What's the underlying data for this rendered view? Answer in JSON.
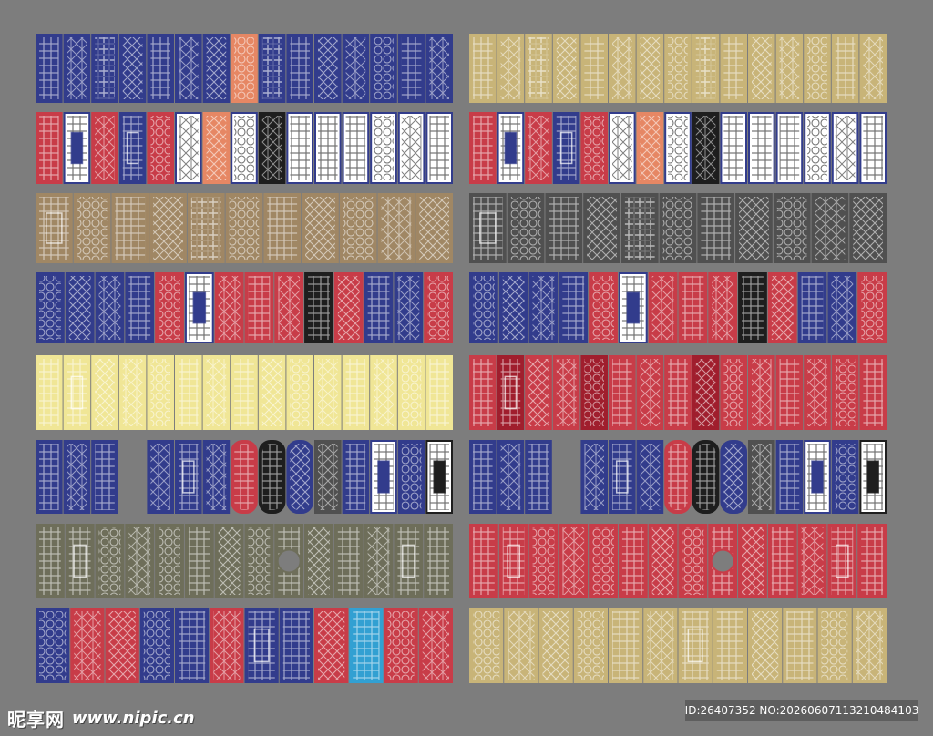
{
  "watermark": {
    "logo": "昵享网",
    "url": "www.nipic.cn",
    "id_text": "ID:26407352 NO:20260607113210484103"
  },
  "colors": {
    "background": "#7d7d7d",
    "navy": "#323c8c",
    "gold": "#c8b478",
    "red": "#c83c48",
    "tan": "#a08764",
    "darkgray": "#505050",
    "yellow": "#f0e696",
    "olive": "#6e6e5a",
    "maroon": "#a01e2d",
    "orange": "#e68764",
    "cyan": "#32a0d2",
    "white": "#ffffff",
    "black": "#1e1e1e"
  },
  "panel_rows": [
    {
      "name": "row-1",
      "left": [
        {
          "c": "navy",
          "p": "grid"
        },
        {
          "c": "navy",
          "p": "lattice"
        },
        {
          "c": "navy",
          "p": "cross"
        },
        {
          "c": "navy",
          "p": "diamond"
        },
        {
          "c": "navy",
          "p": "grid"
        },
        {
          "c": "navy",
          "p": "lattice"
        },
        {
          "c": "navy",
          "p": "diamond"
        },
        {
          "c": "orange",
          "p": "circles"
        },
        {
          "c": "navy",
          "p": "cross"
        },
        {
          "c": "navy",
          "p": "grid"
        },
        {
          "c": "navy",
          "p": "diamond"
        },
        {
          "c": "navy",
          "p": "lattice"
        },
        {
          "c": "navy",
          "p": "circles"
        },
        {
          "c": "navy",
          "p": "grid"
        },
        {
          "c": "navy",
          "p": "lattice"
        }
      ],
      "right": [
        {
          "c": "gold",
          "p": "grid"
        },
        {
          "c": "gold",
          "p": "lattice"
        },
        {
          "c": "gold",
          "p": "cross"
        },
        {
          "c": "gold",
          "p": "diamond"
        },
        {
          "c": "gold",
          "p": "grid"
        },
        {
          "c": "gold",
          "p": "lattice"
        },
        {
          "c": "gold",
          "p": "diamond"
        },
        {
          "c": "gold",
          "p": "circles"
        },
        {
          "c": "gold",
          "p": "cross"
        },
        {
          "c": "gold",
          "p": "grid"
        },
        {
          "c": "gold",
          "p": "diamond"
        },
        {
          "c": "gold",
          "p": "lattice"
        },
        {
          "c": "gold",
          "p": "circles"
        },
        {
          "c": "gold",
          "p": "grid"
        },
        {
          "c": "gold",
          "p": "lattice"
        }
      ]
    },
    {
      "name": "row-2",
      "left": [
        {
          "c": "red",
          "p": "grid"
        },
        {
          "c": "navy",
          "p": "frame",
          "bg": "white"
        },
        {
          "c": "red",
          "p": "lattice"
        },
        {
          "c": "navy",
          "p": "frame"
        },
        {
          "c": "red",
          "p": "circles"
        },
        {
          "c": "navy",
          "p": "lattice",
          "bg": "white"
        },
        {
          "c": "orange",
          "p": "diamond"
        },
        {
          "c": "navy",
          "p": "circles",
          "bg": "white"
        },
        {
          "c": "black",
          "p": "lattice"
        },
        {
          "c": "navy",
          "p": "grid",
          "bg": "white"
        },
        {
          "c": "navy",
          "p": "grid",
          "bg": "white"
        },
        {
          "c": "navy",
          "p": "grid",
          "bg": "white"
        },
        {
          "c": "navy",
          "p": "circles",
          "bg": "white"
        },
        {
          "c": "navy",
          "p": "lattice",
          "bg": "white"
        },
        {
          "c": "navy",
          "p": "grid",
          "bg": "white"
        }
      ],
      "right": [
        {
          "c": "red",
          "p": "grid"
        },
        {
          "c": "navy",
          "p": "frame",
          "bg": "white"
        },
        {
          "c": "red",
          "p": "lattice"
        },
        {
          "c": "navy",
          "p": "frame"
        },
        {
          "c": "red",
          "p": "circles"
        },
        {
          "c": "navy",
          "p": "lattice",
          "bg": "white"
        },
        {
          "c": "orange",
          "p": "diamond"
        },
        {
          "c": "navy",
          "p": "circles",
          "bg": "white"
        },
        {
          "c": "black",
          "p": "lattice"
        },
        {
          "c": "navy",
          "p": "grid",
          "bg": "white"
        },
        {
          "c": "navy",
          "p": "grid",
          "bg": "white"
        },
        {
          "c": "navy",
          "p": "grid",
          "bg": "white"
        },
        {
          "c": "navy",
          "p": "circles",
          "bg": "white"
        },
        {
          "c": "navy",
          "p": "lattice",
          "bg": "white"
        },
        {
          "c": "navy",
          "p": "grid",
          "bg": "white"
        }
      ]
    },
    {
      "name": "row-3",
      "left": [
        {
          "c": "tan",
          "p": "frame"
        },
        {
          "c": "tan",
          "p": "circles"
        },
        {
          "c": "tan",
          "p": "grid"
        },
        {
          "c": "tan",
          "p": "diamond"
        },
        {
          "c": "tan",
          "p": "cross"
        },
        {
          "c": "tan",
          "p": "circles"
        },
        {
          "c": "tan",
          "p": "grid"
        },
        {
          "c": "tan",
          "p": "diamond"
        },
        {
          "c": "tan",
          "p": "circles"
        },
        {
          "c": "tan",
          "p": "lattice"
        },
        {
          "c": "tan",
          "p": "diamond"
        }
      ],
      "right": [
        {
          "c": "darkgray",
          "p": "frame"
        },
        {
          "c": "darkgray",
          "p": "circles"
        },
        {
          "c": "darkgray",
          "p": "grid"
        },
        {
          "c": "darkgray",
          "p": "diamond"
        },
        {
          "c": "darkgray",
          "p": "cross"
        },
        {
          "c": "darkgray",
          "p": "circles"
        },
        {
          "c": "darkgray",
          "p": "grid"
        },
        {
          "c": "darkgray",
          "p": "diamond"
        },
        {
          "c": "darkgray",
          "p": "circles"
        },
        {
          "c": "darkgray",
          "p": "lattice"
        },
        {
          "c": "darkgray",
          "p": "diamond"
        }
      ]
    },
    {
      "name": "row-4",
      "left": [
        {
          "c": "navy",
          "p": "circles"
        },
        {
          "c": "navy",
          "p": "diamond"
        },
        {
          "c": "navy",
          "p": "lattice"
        },
        {
          "c": "navy",
          "p": "grid"
        },
        {
          "c": "red",
          "p": "circles"
        },
        {
          "c": "navy",
          "p": "frame",
          "bg": "white"
        },
        {
          "c": "red",
          "p": "lattice"
        },
        {
          "c": "red",
          "p": "grid"
        },
        {
          "c": "red",
          "p": "lattice"
        },
        {
          "c": "black",
          "p": "grid"
        },
        {
          "c": "red",
          "p": "diamond"
        },
        {
          "c": "navy",
          "p": "grid"
        },
        {
          "c": "navy",
          "p": "lattice"
        },
        {
          "c": "red",
          "p": "circles"
        }
      ],
      "right": [
        {
          "c": "navy",
          "p": "circles"
        },
        {
          "c": "navy",
          "p": "diamond"
        },
        {
          "c": "navy",
          "p": "lattice"
        },
        {
          "c": "navy",
          "p": "grid"
        },
        {
          "c": "red",
          "p": "circles"
        },
        {
          "c": "navy",
          "p": "frame",
          "bg": "white"
        },
        {
          "c": "red",
          "p": "lattice"
        },
        {
          "c": "red",
          "p": "grid"
        },
        {
          "c": "red",
          "p": "lattice"
        },
        {
          "c": "black",
          "p": "grid"
        },
        {
          "c": "red",
          "p": "diamond"
        },
        {
          "c": "navy",
          "p": "grid"
        },
        {
          "c": "navy",
          "p": "lattice"
        },
        {
          "c": "red",
          "p": "circles"
        }
      ]
    },
    {
      "name": "row-5",
      "left": [
        {
          "c": "yellow",
          "p": "grid"
        },
        {
          "c": "yellow",
          "p": "frame"
        },
        {
          "c": "yellow",
          "p": "diamond"
        },
        {
          "c": "yellow",
          "p": "lattice"
        },
        {
          "c": "yellow",
          "p": "circles"
        },
        {
          "c": "yellow",
          "p": "grid"
        },
        {
          "c": "yellow",
          "p": "lattice"
        },
        {
          "c": "yellow",
          "p": "grid"
        },
        {
          "c": "yellow",
          "p": "diamond"
        },
        {
          "c": "yellow",
          "p": "circles"
        },
        {
          "c": "yellow",
          "p": "lattice"
        },
        {
          "c": "yellow",
          "p": "grid"
        },
        {
          "c": "yellow",
          "p": "lattice"
        },
        {
          "c": "yellow",
          "p": "circles"
        },
        {
          "c": "yellow",
          "p": "grid"
        }
      ],
      "right": [
        {
          "c": "red",
          "p": "grid"
        },
        {
          "c": "maroon",
          "p": "frame"
        },
        {
          "c": "red",
          "p": "diamond"
        },
        {
          "c": "red",
          "p": "lattice"
        },
        {
          "c": "maroon",
          "p": "circles"
        },
        {
          "c": "red",
          "p": "grid"
        },
        {
          "c": "red",
          "p": "lattice"
        },
        {
          "c": "red",
          "p": "grid"
        },
        {
          "c": "maroon",
          "p": "diamond"
        },
        {
          "c": "red",
          "p": "circles"
        },
        {
          "c": "red",
          "p": "lattice"
        },
        {
          "c": "red",
          "p": "grid"
        },
        {
          "c": "red",
          "p": "lattice"
        },
        {
          "c": "red",
          "p": "circles"
        },
        {
          "c": "red",
          "p": "grid"
        }
      ]
    },
    {
      "name": "row-6",
      "left": [
        {
          "c": "navy",
          "p": "grid"
        },
        {
          "c": "navy",
          "p": "lattice"
        },
        {
          "c": "navy",
          "p": "grid"
        },
        {
          "gap": true
        },
        {
          "c": "navy",
          "p": "lattice"
        },
        {
          "c": "navy",
          "p": "frame"
        },
        {
          "c": "navy",
          "p": "lattice"
        },
        {
          "c": "red",
          "p": "grid",
          "arch": true
        },
        {
          "c": "black",
          "p": "grid",
          "arch": true
        },
        {
          "c": "navy",
          "p": "diamond",
          "arch": true
        },
        {
          "c": "darkgray",
          "p": "lattice"
        },
        {
          "c": "navy",
          "p": "grid"
        },
        {
          "c": "navy",
          "p": "frame",
          "bg": "white"
        },
        {
          "c": "navy",
          "p": "circles"
        },
        {
          "c": "black",
          "p": "frame",
          "bg": "white"
        }
      ],
      "right": [
        {
          "c": "navy",
          "p": "grid"
        },
        {
          "c": "navy",
          "p": "lattice"
        },
        {
          "c": "navy",
          "p": "grid"
        },
        {
          "gap": true
        },
        {
          "c": "navy",
          "p": "lattice"
        },
        {
          "c": "navy",
          "p": "frame"
        },
        {
          "c": "navy",
          "p": "lattice"
        },
        {
          "c": "red",
          "p": "grid",
          "arch": true
        },
        {
          "c": "black",
          "p": "grid",
          "arch": true
        },
        {
          "c": "navy",
          "p": "diamond",
          "arch": true
        },
        {
          "c": "darkgray",
          "p": "lattice"
        },
        {
          "c": "navy",
          "p": "grid"
        },
        {
          "c": "navy",
          "p": "frame",
          "bg": "white"
        },
        {
          "c": "navy",
          "p": "circles"
        },
        {
          "c": "black",
          "p": "frame",
          "bg": "white"
        }
      ]
    },
    {
      "name": "row-7",
      "left": [
        {
          "c": "olive",
          "p": "grid"
        },
        {
          "c": "olive",
          "p": "frame"
        },
        {
          "c": "olive",
          "p": "circles"
        },
        {
          "c": "olive",
          "p": "lattice"
        },
        {
          "c": "olive",
          "p": "circles"
        },
        {
          "c": "olive",
          "p": "grid"
        },
        {
          "c": "olive",
          "p": "diamond"
        },
        {
          "c": "olive",
          "p": "circles"
        },
        {
          "c": "olive",
          "p": "medallion"
        },
        {
          "c": "olive",
          "p": "diamond"
        },
        {
          "c": "olive",
          "p": "grid"
        },
        {
          "c": "olive",
          "p": "lattice"
        },
        {
          "c": "olive",
          "p": "frame"
        },
        {
          "c": "olive",
          "p": "grid"
        }
      ],
      "right": [
        {
          "c": "red",
          "p": "grid"
        },
        {
          "c": "red",
          "p": "frame"
        },
        {
          "c": "red",
          "p": "circles"
        },
        {
          "c": "red",
          "p": "lattice"
        },
        {
          "c": "red",
          "p": "circles"
        },
        {
          "c": "red",
          "p": "grid"
        },
        {
          "c": "red",
          "p": "diamond"
        },
        {
          "c": "red",
          "p": "circles"
        },
        {
          "c": "red",
          "p": "medallion"
        },
        {
          "c": "red",
          "p": "diamond"
        },
        {
          "c": "red",
          "p": "grid"
        },
        {
          "c": "red",
          "p": "lattice"
        },
        {
          "c": "red",
          "p": "frame"
        },
        {
          "c": "red",
          "p": "grid"
        }
      ]
    },
    {
      "name": "row-8",
      "left": [
        {
          "c": "navy",
          "p": "circles"
        },
        {
          "c": "red",
          "p": "lattice"
        },
        {
          "c": "red",
          "p": "diamond"
        },
        {
          "c": "navy",
          "p": "circles"
        },
        {
          "c": "navy",
          "p": "grid"
        },
        {
          "c": "red",
          "p": "lattice"
        },
        {
          "c": "navy",
          "p": "frame"
        },
        {
          "c": "navy",
          "p": "grid"
        },
        {
          "c": "red",
          "p": "diamond"
        },
        {
          "c": "cyan",
          "p": "grid"
        },
        {
          "c": "red",
          "p": "circles"
        },
        {
          "c": "red",
          "p": "lattice"
        }
      ],
      "right": [
        {
          "c": "gold",
          "p": "circles"
        },
        {
          "c": "gold",
          "p": "lattice"
        },
        {
          "c": "gold",
          "p": "diamond"
        },
        {
          "c": "gold",
          "p": "circles"
        },
        {
          "c": "gold",
          "p": "grid"
        },
        {
          "c": "gold",
          "p": "lattice"
        },
        {
          "c": "gold",
          "p": "frame"
        },
        {
          "c": "gold",
          "p": "grid"
        },
        {
          "c": "gold",
          "p": "diamond"
        },
        {
          "c": "gold",
          "p": "grid"
        },
        {
          "c": "gold",
          "p": "circles"
        },
        {
          "c": "gold",
          "p": "lattice"
        }
      ]
    }
  ]
}
